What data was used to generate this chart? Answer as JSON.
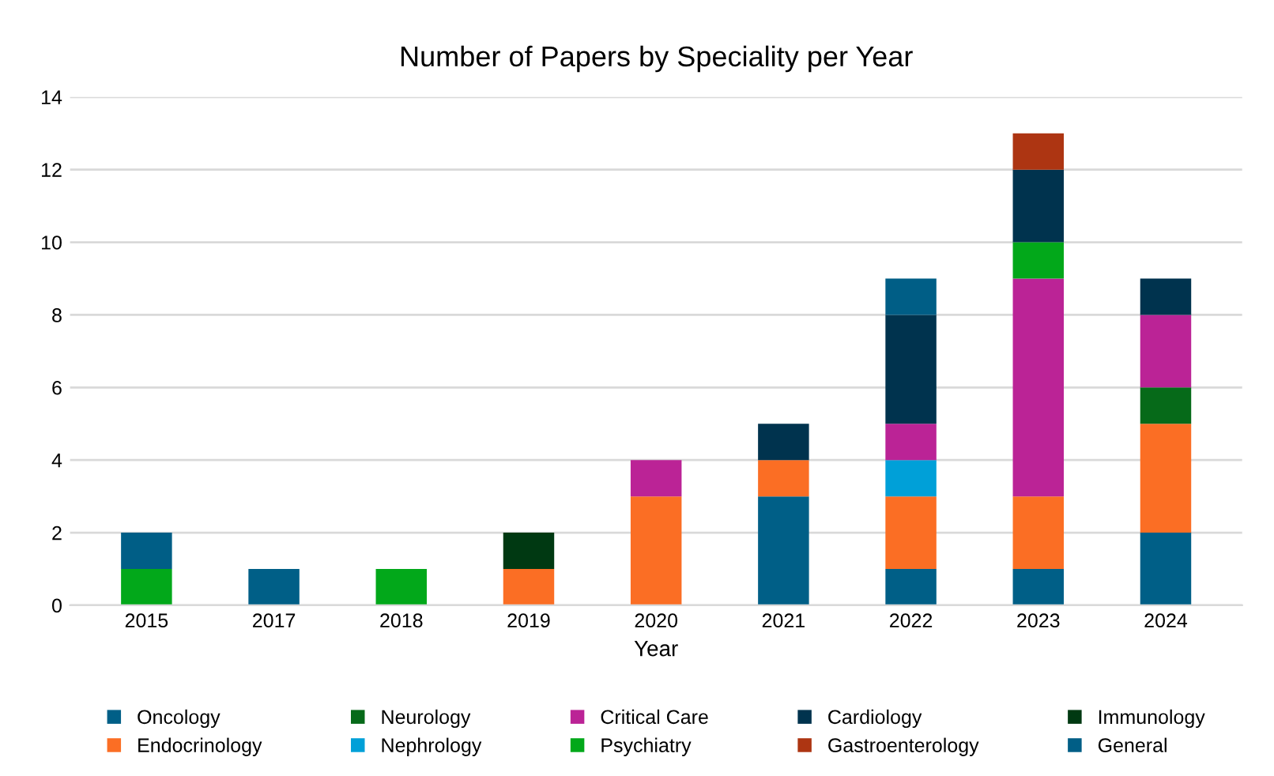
{
  "chart_data": {
    "type": "bar",
    "stacked": true,
    "title": "Number of Papers by Speciality per Year",
    "xlabel": "Year",
    "categories": [
      "2015",
      "2017",
      "2018",
      "2019",
      "2020",
      "2021",
      "2022",
      "2023",
      "2024"
    ],
    "series": [
      {
        "name": "Oncology",
        "color": "#005f87",
        "values": [
          0,
          1,
          0,
          0,
          0,
          3,
          1,
          1,
          2
        ]
      },
      {
        "name": "Endocrinology",
        "color": "#fb6e24",
        "values": [
          0,
          0,
          0,
          1,
          3,
          1,
          2,
          2,
          3
        ]
      },
      {
        "name": "Neurology",
        "color": "#066a19",
        "values": [
          0,
          0,
          0,
          0,
          0,
          0,
          0,
          0,
          1
        ]
      },
      {
        "name": "Nephrology",
        "color": "#00a0d8",
        "values": [
          0,
          0,
          0,
          0,
          0,
          0,
          1,
          0,
          0
        ]
      },
      {
        "name": "Critical Care",
        "color": "#bb2396",
        "values": [
          0,
          0,
          0,
          0,
          1,
          0,
          1,
          6,
          2
        ]
      },
      {
        "name": "Psychiatry",
        "color": "#02a81a",
        "values": [
          1,
          0,
          1,
          0,
          0,
          0,
          0,
          1,
          0
        ]
      },
      {
        "name": "Cardiology",
        "color": "#00334e",
        "values": [
          0,
          0,
          0,
          0,
          0,
          1,
          3,
          2,
          1
        ]
      },
      {
        "name": "Gastroenterology",
        "color": "#ad3512",
        "values": [
          0,
          0,
          0,
          0,
          0,
          0,
          0,
          1,
          0
        ]
      },
      {
        "name": "Immunology",
        "color": "#003912",
        "values": [
          0,
          0,
          0,
          1,
          0,
          0,
          0,
          0,
          0
        ]
      },
      {
        "name": "General",
        "color": "#005e86",
        "values": [
          1,
          0,
          0,
          0,
          0,
          0,
          1,
          0,
          0
        ]
      }
    ],
    "ylim": [
      0,
      14
    ],
    "yticks": [
      0,
      2,
      4,
      6,
      8,
      10,
      12,
      14
    ],
    "grid": "y",
    "legend": "bottom"
  }
}
